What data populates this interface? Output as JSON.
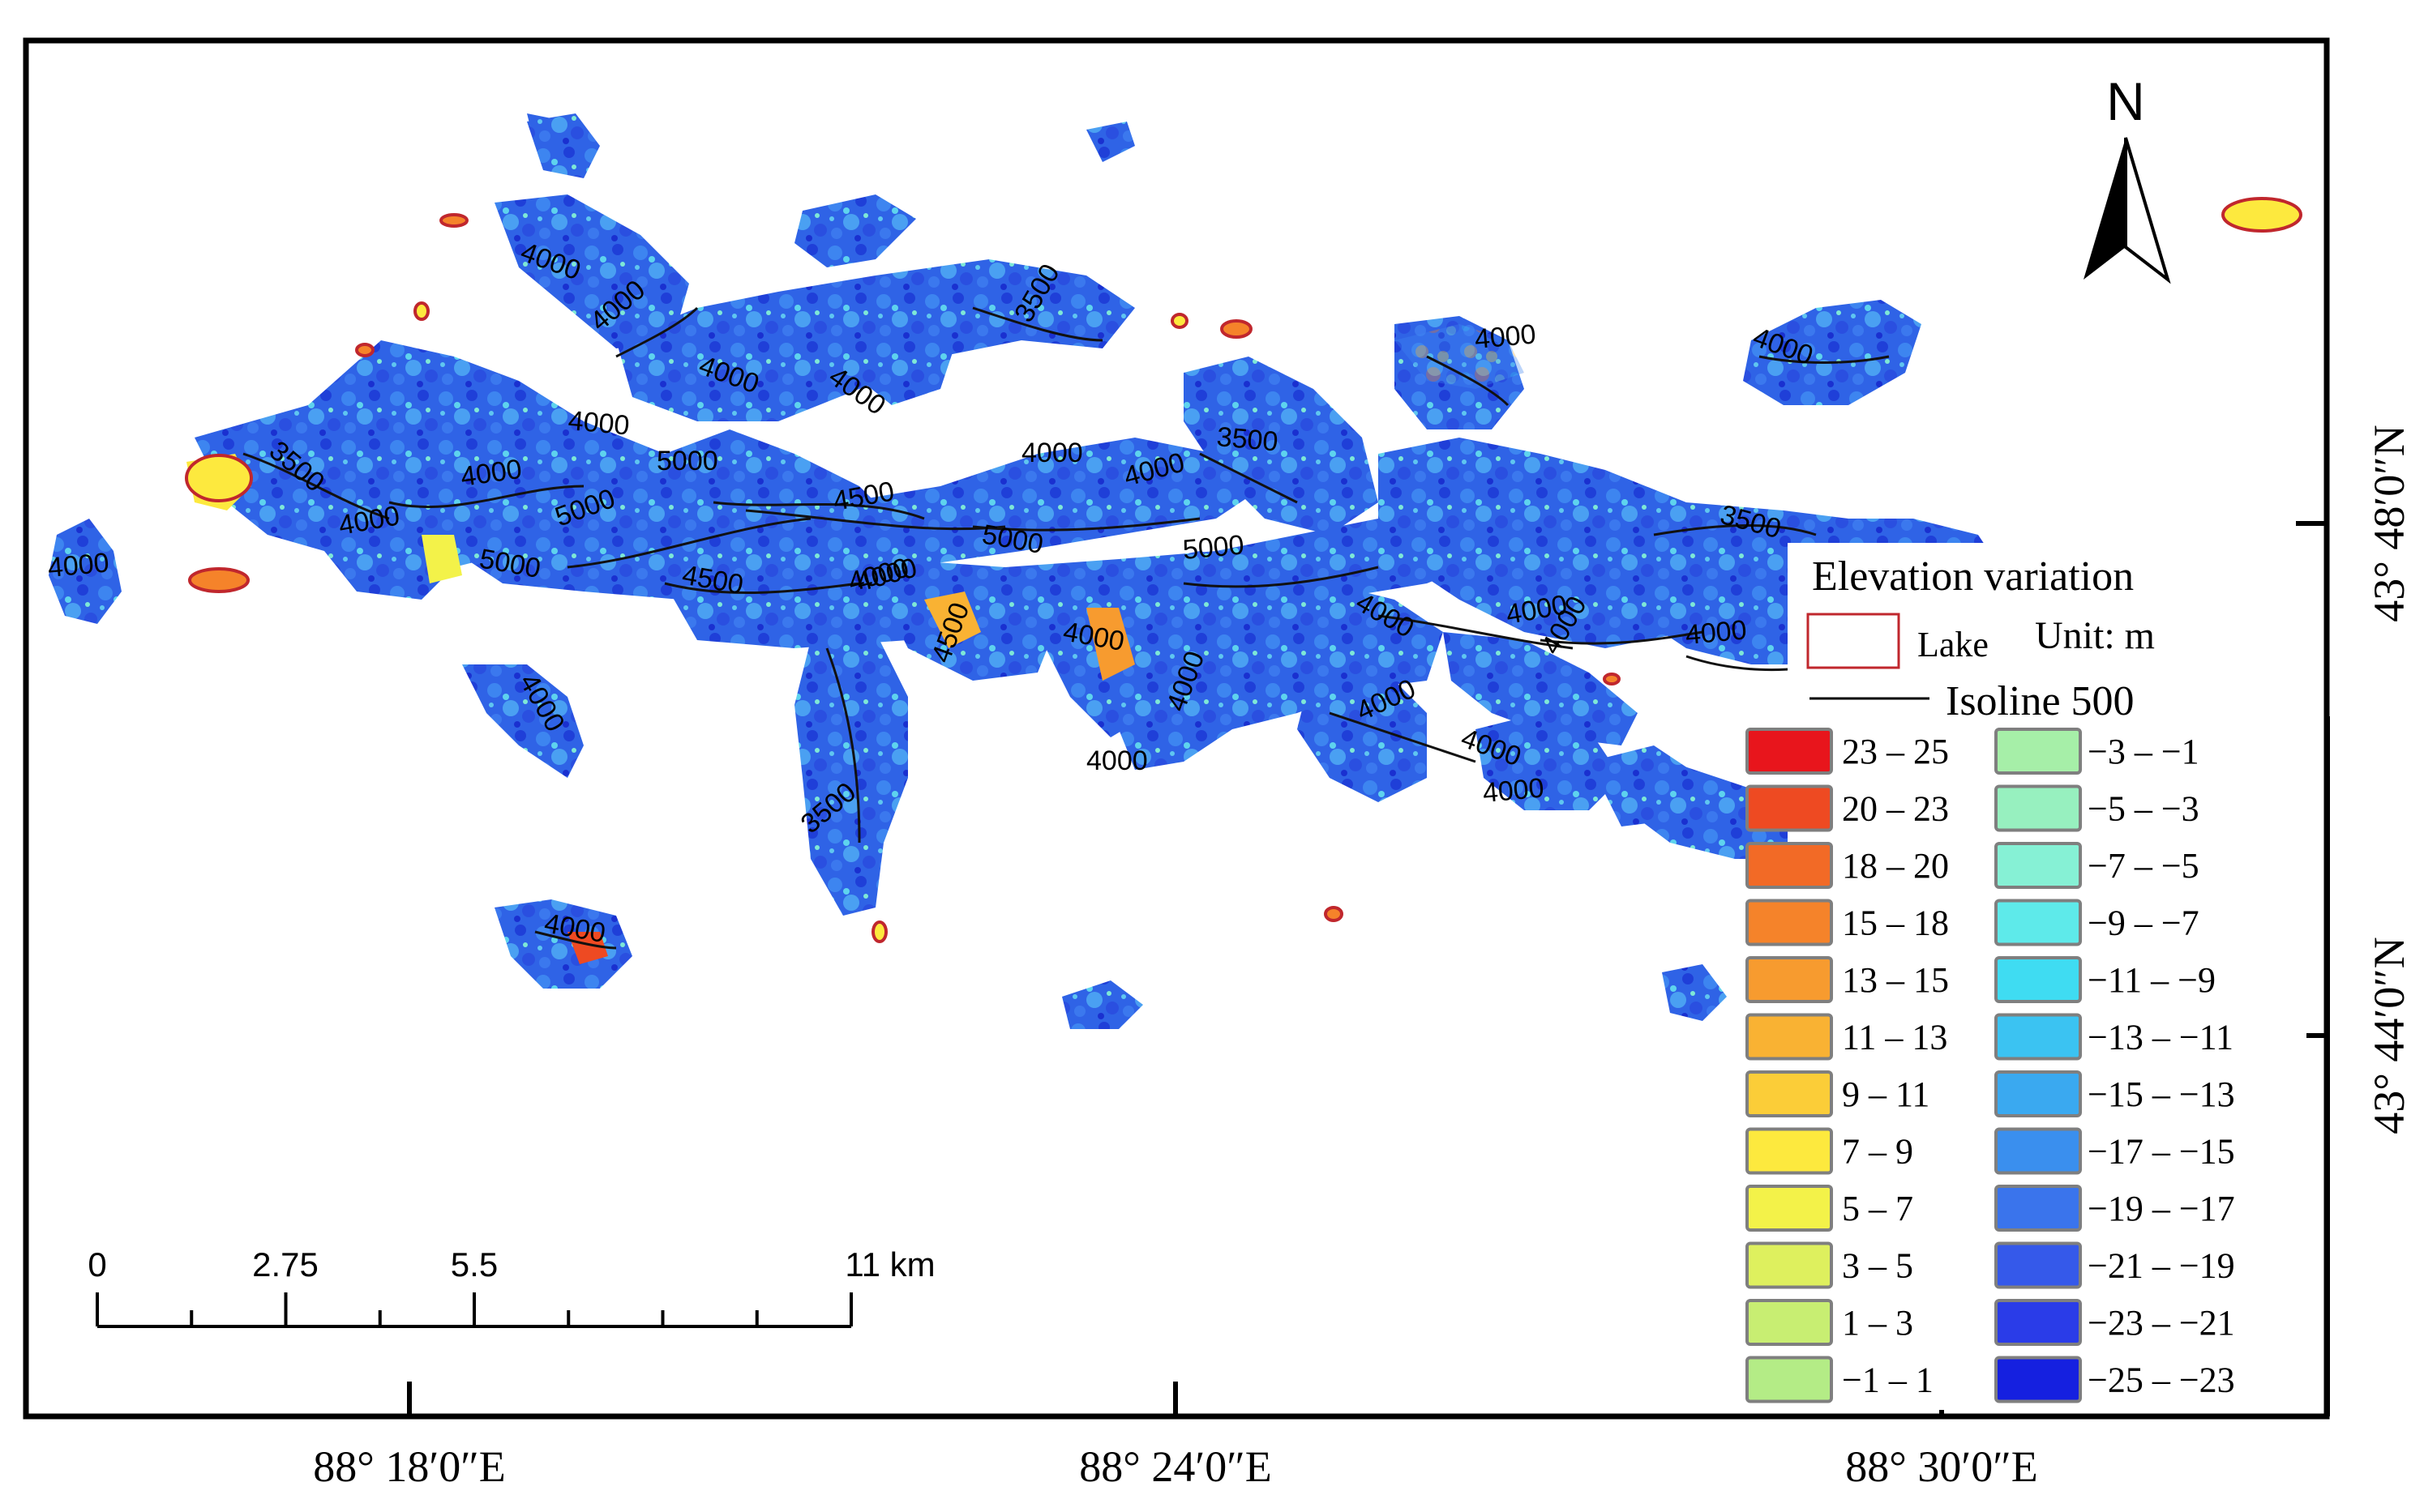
{
  "north_arrow": {
    "label": "N"
  },
  "scale_bar": {
    "tick_labels": [
      "0",
      "2.75",
      "5.5",
      "11 km"
    ],
    "tick_values_km": [
      0,
      2.75,
      5.5,
      11
    ]
  },
  "coordinates": {
    "longitude_labels": [
      "88° 18′0″E",
      "88° 24′0″E",
      "88° 30′0″E"
    ],
    "latitude_labels": [
      "43° 48′0″N",
      "43° 44′0″N"
    ]
  },
  "legend": {
    "title": "Elevation variation",
    "unit": "Unit: m",
    "lake_label": "Lake",
    "isoline_label": "Isoline 500",
    "classes_left": [
      {
        "label": "23 – 25",
        "color": "#e8151c"
      },
      {
        "label": "20 – 23",
        "color": "#ee4a22"
      },
      {
        "label": "18 – 20",
        "color": "#f26a26"
      },
      {
        "label": "15 – 18",
        "color": "#f5832a"
      },
      {
        "label": "13 – 15",
        "color": "#f79b2f"
      },
      {
        "label": "11 – 13",
        "color": "#f9b233"
      },
      {
        "label": "9 – 11",
        "color": "#fbcd38"
      },
      {
        "label": "7 – 9",
        "color": "#fde93e"
      },
      {
        "label": "5 – 7",
        "color": "#f3f249"
      },
      {
        "label": "3 – 5",
        "color": "#def05e"
      },
      {
        "label": "1 – 3",
        "color": "#c8ee72"
      },
      {
        "label": "−1 – 1",
        "color": "#b4ec86"
      }
    ],
    "classes_right": [
      {
        "label": "−3 – −1",
        "color": "#a6efa8"
      },
      {
        "label": "−5 – −3",
        "color": "#97f0bf"
      },
      {
        "label": "−7 – −5",
        "color": "#86f1d5"
      },
      {
        "label": "−9 – −7",
        "color": "#5eeaea"
      },
      {
        "label": "−11 – −9",
        "color": "#3fdcf2"
      },
      {
        "label": "−13 – −11",
        "color": "#3bc3f2"
      },
      {
        "label": "−15 – −13",
        "color": "#3aa9f0"
      },
      {
        "label": "−17 – −15",
        "color": "#3a8fee"
      },
      {
        "label": "−19 – −17",
        "color": "#3a74ec"
      },
      {
        "label": "−21 – −19",
        "color": "#3559ea"
      },
      {
        "label": "−23 – −21",
        "color": "#2a3ce8"
      },
      {
        "label": "−25 – −23",
        "color": "#1520e0"
      }
    ]
  },
  "contour_labels": [
    "4000",
    "4000",
    "3500",
    "4000",
    "4000",
    "4000",
    "3500",
    "4000",
    "4000",
    "5000",
    "4000",
    "4000",
    "3500",
    "4000",
    "5000",
    "4500",
    "5000",
    "4000",
    "5000",
    "4500",
    "4000",
    "5000",
    "4000",
    "3500",
    "4000",
    "4500",
    "4000",
    "4000",
    "4000",
    "4000",
    "4000",
    "4000",
    "4000",
    "3500",
    "4000",
    "4000",
    "4000",
    "4000",
    "4000"
  ]
}
